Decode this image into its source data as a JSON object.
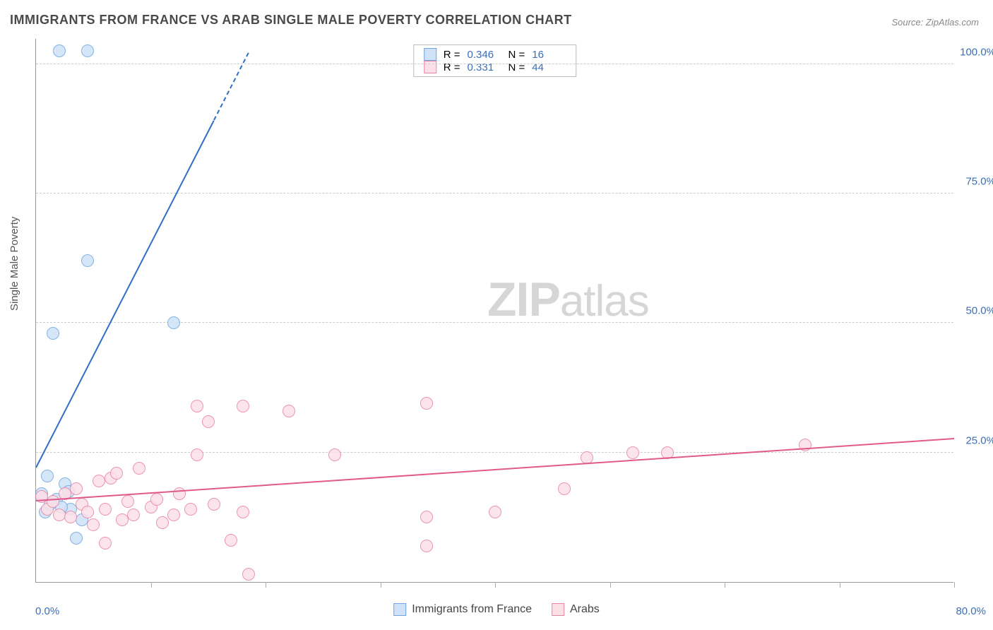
{
  "title": "IMMIGRANTS FROM FRANCE VS ARAB SINGLE MALE POVERTY CORRELATION CHART",
  "source_label": "Source: ZipAtlas.com",
  "watermark": {
    "bold": "ZIP",
    "rest": "atlas"
  },
  "ylabel": "Single Male Poverty",
  "chart": {
    "type": "scatter",
    "background_color": "#ffffff",
    "grid_color": "#cccccc",
    "grid_dash": true,
    "axis_color": "#999999",
    "tick_color": "#aaaaaa",
    "label_color": "#3b6fb6",
    "label_fontsize": 15,
    "title_fontsize": 18,
    "title_color": "#4a4a4a",
    "marker_radius": 9,
    "marker_stroke_width": 1.5,
    "trend_line_width": 2,
    "xlim": [
      0,
      80
    ],
    "ylim": [
      0,
      105
    ],
    "xtick_positions": [
      0,
      10,
      20,
      30,
      40,
      50,
      60,
      70,
      80
    ],
    "ytick_positions": [
      25,
      50,
      75,
      100
    ],
    "ytick_labels": [
      "25.0%",
      "50.0%",
      "75.0%",
      "100.0%"
    ],
    "xlabel_min": "0.0%",
    "xlabel_max": "80.0%",
    "series": [
      {
        "id": "france",
        "name": "Immigrants from France",
        "marker_fill": "#cfe2f8",
        "marker_stroke": "#6fa6dd",
        "line_color": "#2f6fc4",
        "r": 0.346,
        "n": 16,
        "points": [
          [
            2.0,
            102.5
          ],
          [
            4.5,
            102.5
          ],
          [
            4.5,
            62.0
          ],
          [
            1.5,
            48.0
          ],
          [
            12.0,
            50.0
          ],
          [
            1.0,
            20.5
          ],
          [
            2.5,
            19.0
          ],
          [
            0.5,
            17.0
          ],
          [
            1.8,
            16.0
          ],
          [
            3.0,
            14.0
          ],
          [
            2.2,
            14.5
          ],
          [
            0.8,
            13.5
          ],
          [
            4.0,
            12.0
          ],
          [
            3.5,
            8.5
          ],
          [
            1.2,
            15.0
          ],
          [
            2.8,
            17.5
          ]
        ],
        "trend": {
          "x1": 0,
          "y1": 22,
          "x2": 18.5,
          "y2": 102
        },
        "trend_dashed_from": 15.5
      },
      {
        "id": "arabs",
        "name": "Arabs",
        "marker_fill": "#fbe0e8",
        "marker_stroke": "#e985a4",
        "line_color": "#e05a8a",
        "r": 0.331,
        "n": 44,
        "points": [
          [
            1.0,
            14.0
          ],
          [
            1.5,
            15.5
          ],
          [
            2.0,
            13.0
          ],
          [
            2.5,
            17.0
          ],
          [
            3.0,
            12.5
          ],
          [
            3.5,
            18.0
          ],
          [
            4.0,
            15.0
          ],
          [
            4.5,
            13.5
          ],
          [
            5.0,
            11.0
          ],
          [
            5.5,
            19.5
          ],
          [
            6.0,
            14.0
          ],
          [
            6.5,
            20.0
          ],
          [
            7.0,
            21.0
          ],
          [
            7.5,
            12.0
          ],
          [
            8.0,
            15.5
          ],
          [
            8.5,
            13.0
          ],
          [
            9.0,
            22.0
          ],
          [
            10.0,
            14.5
          ],
          [
            10.5,
            16.0
          ],
          [
            11.0,
            11.5
          ],
          [
            12.0,
            13.0
          ],
          [
            12.5,
            17.0
          ],
          [
            13.5,
            14.0
          ],
          [
            14.0,
            34.0
          ],
          [
            14.0,
            24.5
          ],
          [
            15.0,
            31.0
          ],
          [
            15.5,
            15.0
          ],
          [
            17.0,
            8.0
          ],
          [
            18.0,
            34.0
          ],
          [
            18.0,
            13.5
          ],
          [
            18.5,
            1.5
          ],
          [
            22.0,
            33.0
          ],
          [
            26.0,
            24.5
          ],
          [
            34.0,
            34.5
          ],
          [
            34.0,
            12.5
          ],
          [
            34.0,
            7.0
          ],
          [
            40.0,
            13.5
          ],
          [
            46.0,
            18.0
          ],
          [
            48.0,
            24.0
          ],
          [
            52.0,
            25.0
          ],
          [
            55.0,
            25.0
          ],
          [
            67.0,
            26.5
          ],
          [
            0.5,
            16.5
          ],
          [
            6.0,
            7.5
          ]
        ],
        "trend": {
          "x1": 0,
          "y1": 15.5,
          "x2": 80,
          "y2": 27.5
        }
      }
    ]
  },
  "legend_top": {
    "r_label": "R =",
    "n_label": "N ="
  },
  "legend_bottom": {
    "items": [
      "Immigrants from France",
      "Arabs"
    ]
  }
}
